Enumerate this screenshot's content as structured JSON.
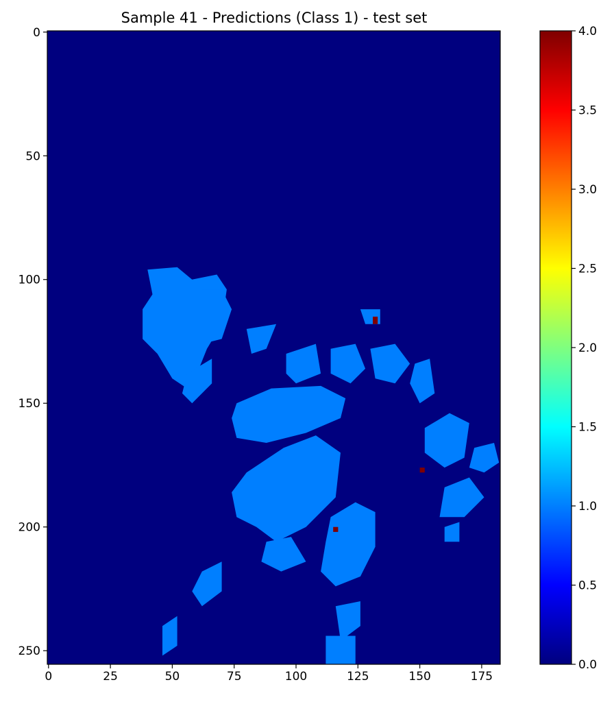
{
  "chart_data": {
    "type": "heatmap",
    "title": "Sample 41 - Predictions (Class 1) - test set",
    "xlabel": "",
    "ylabel": "",
    "xlim": [
      -0.5,
      182.5
    ],
    "ylim": [
      255.5,
      -0.5
    ],
    "x_ticks": [
      0,
      25,
      50,
      75,
      100,
      125,
      150,
      175
    ],
    "y_ticks": [
      0,
      50,
      100,
      150,
      200,
      250
    ],
    "colormap": "jet",
    "colorbar": {
      "range": [
        0.0,
        4.0
      ],
      "ticks": [
        "0.0",
        "0.5",
        "1.0",
        "1.5",
        "2.0",
        "2.5",
        "3.0",
        "3.5",
        "4.0"
      ],
      "colors": [
        "#00007f",
        "#0000ff",
        "#007fff",
        "#00ffff",
        "#7fff7f",
        "#ffff00",
        "#ff7f00",
        "#ff0000",
        "#7f0000"
      ]
    },
    "background_value": 0.0,
    "regions": [
      {
        "value": 1.0,
        "points": [
          [
            40,
            96
          ],
          [
            52,
            95
          ],
          [
            58,
            100
          ],
          [
            68,
            98
          ],
          [
            72,
            104
          ],
          [
            70,
            118
          ],
          [
            64,
            128
          ],
          [
            60,
            138
          ],
          [
            56,
            144
          ],
          [
            50,
            140
          ],
          [
            44,
            130
          ],
          [
            38,
            124
          ],
          [
            38,
            112
          ],
          [
            42,
            106
          ]
        ]
      },
      {
        "value": 1.0,
        "points": [
          [
            62,
            104
          ],
          [
            70,
            104
          ],
          [
            74,
            112
          ],
          [
            70,
            124
          ],
          [
            62,
            126
          ]
        ]
      },
      {
        "value": 1.0,
        "points": [
          [
            56,
            138
          ],
          [
            66,
            132
          ],
          [
            66,
            142
          ],
          [
            58,
            150
          ],
          [
            54,
            146
          ]
        ]
      },
      {
        "value": 1.0,
        "points": [
          [
            80,
            120
          ],
          [
            92,
            118
          ],
          [
            88,
            128
          ],
          [
            82,
            130
          ]
        ]
      },
      {
        "value": 1.0,
        "points": [
          [
            76,
            150
          ],
          [
            90,
            144
          ],
          [
            110,
            143
          ],
          [
            120,
            148
          ],
          [
            118,
            156
          ],
          [
            104,
            162
          ],
          [
            88,
            166
          ],
          [
            76,
            164
          ],
          [
            74,
            156
          ]
        ]
      },
      {
        "value": 1.0,
        "points": [
          [
            96,
            130
          ],
          [
            108,
            126
          ],
          [
            110,
            138
          ],
          [
            100,
            142
          ],
          [
            96,
            138
          ]
        ]
      },
      {
        "value": 1.0,
        "points": [
          [
            114,
            128
          ],
          [
            124,
            126
          ],
          [
            128,
            136
          ],
          [
            122,
            142
          ],
          [
            114,
            138
          ]
        ]
      },
      {
        "value": 1.0,
        "points": [
          [
            130,
            128
          ],
          [
            140,
            126
          ],
          [
            146,
            134
          ],
          [
            140,
            142
          ],
          [
            132,
            140
          ]
        ]
      },
      {
        "value": 1.0,
        "points": [
          [
            148,
            134
          ],
          [
            154,
            132
          ],
          [
            156,
            146
          ],
          [
            150,
            150
          ],
          [
            146,
            142
          ]
        ]
      },
      {
        "value": 1.0,
        "points": [
          [
            80,
            178
          ],
          [
            95,
            168
          ],
          [
            108,
            163
          ],
          [
            118,
            170
          ],
          [
            116,
            188
          ],
          [
            104,
            200
          ],
          [
            92,
            206
          ],
          [
            84,
            200
          ],
          [
            76,
            196
          ],
          [
            74,
            186
          ]
        ]
      },
      {
        "value": 1.0,
        "points": [
          [
            88,
            206
          ],
          [
            98,
            204
          ],
          [
            104,
            214
          ],
          [
            94,
            218
          ],
          [
            86,
            214
          ]
        ]
      },
      {
        "value": 1.0,
        "points": [
          [
            114,
            196
          ],
          [
            124,
            190
          ],
          [
            132,
            194
          ],
          [
            132,
            208
          ],
          [
            126,
            220
          ],
          [
            116,
            224
          ],
          [
            110,
            218
          ],
          [
            112,
            206
          ]
        ]
      },
      {
        "value": 1.0,
        "points": [
          [
            152,
            160
          ],
          [
            162,
            154
          ],
          [
            170,
            158
          ],
          [
            168,
            172
          ],
          [
            160,
            176
          ],
          [
            152,
            170
          ]
        ]
      },
      {
        "value": 1.0,
        "points": [
          [
            160,
            184
          ],
          [
            170,
            180
          ],
          [
            176,
            188
          ],
          [
            168,
            196
          ],
          [
            158,
            196
          ]
        ]
      },
      {
        "value": 1.0,
        "points": [
          [
            172,
            168
          ],
          [
            180,
            166
          ],
          [
            182,
            174
          ],
          [
            176,
            178
          ],
          [
            170,
            176
          ]
        ]
      },
      {
        "value": 1.0,
        "points": [
          [
            126,
            112
          ],
          [
            134,
            112
          ],
          [
            134,
            118
          ],
          [
            128,
            118
          ]
        ]
      },
      {
        "value": 1.0,
        "points": [
          [
            160,
            200
          ],
          [
            166,
            198
          ],
          [
            166,
            206
          ],
          [
            160,
            206
          ]
        ]
      },
      {
        "value": 1.0,
        "points": [
          [
            62,
            218
          ],
          [
            70,
            214
          ],
          [
            70,
            226
          ],
          [
            62,
            232
          ],
          [
            58,
            226
          ]
        ]
      },
      {
        "value": 1.0,
        "points": [
          [
            46,
            240
          ],
          [
            52,
            236
          ],
          [
            52,
            248
          ],
          [
            46,
            252
          ]
        ]
      },
      {
        "value": 1.0,
        "points": [
          [
            116,
            232
          ],
          [
            126,
            230
          ],
          [
            126,
            240
          ],
          [
            118,
            246
          ]
        ]
      },
      {
        "value": 1.0,
        "points": [
          [
            112,
            244
          ],
          [
            124,
            244
          ],
          [
            124,
            256
          ],
          [
            112,
            256
          ]
        ]
      },
      {
        "value": 4.0,
        "points": [
          [
            131,
            115
          ],
          [
            133,
            115
          ],
          [
            133,
            118
          ],
          [
            131,
            118
          ]
        ]
      },
      {
        "value": 4.0,
        "points": [
          [
            150,
            176
          ],
          [
            152,
            176
          ],
          [
            152,
            178
          ],
          [
            150,
            178
          ]
        ]
      },
      {
        "value": 4.0,
        "points": [
          [
            115,
            200
          ],
          [
            117,
            200
          ],
          [
            117,
            202
          ],
          [
            115,
            202
          ]
        ]
      }
    ]
  }
}
